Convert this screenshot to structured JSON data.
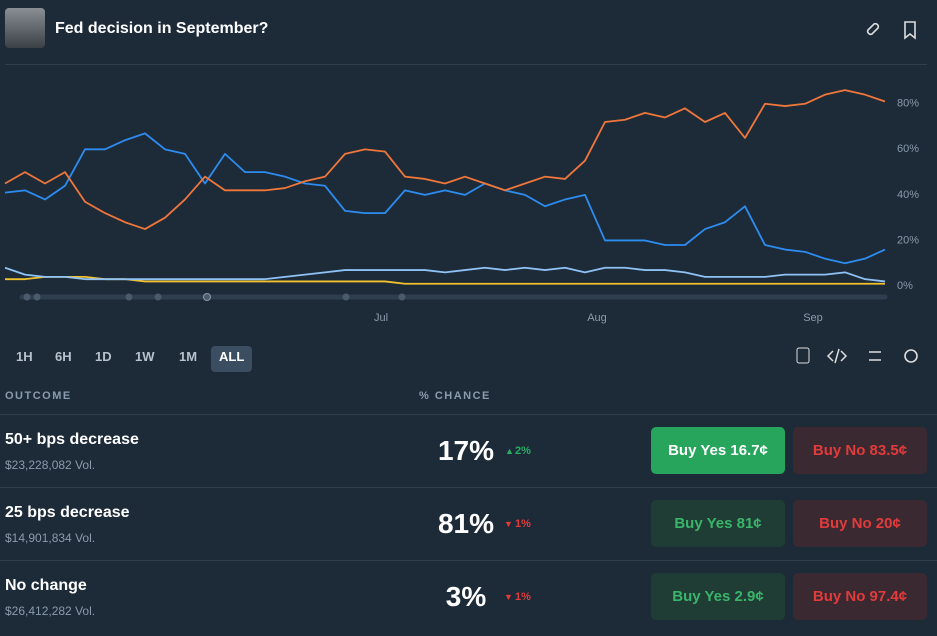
{
  "header": {
    "title": "Fed decision in September?"
  },
  "chart_data": {
    "type": "line",
    "ylim": [
      0,
      90
    ],
    "yticks": [
      {
        "value": 0,
        "label": "0%"
      },
      {
        "value": 20,
        "label": "20%"
      },
      {
        "value": 40,
        "label": "40%"
      },
      {
        "value": 60,
        "label": "60%"
      },
      {
        "value": 80,
        "label": "80%"
      }
    ],
    "xlim": [
      0,
      44
    ],
    "xticks": [
      {
        "value": 18.8,
        "label": "Jul"
      },
      {
        "value": 29.6,
        "label": "Aug"
      },
      {
        "value": 40.4,
        "label": "Sep"
      }
    ],
    "series": [
      {
        "color": "#f0763a",
        "values": [
          45,
          50,
          45,
          50,
          37,
          32,
          28,
          25,
          30,
          38,
          48,
          42,
          42,
          42,
          43,
          46,
          48,
          58,
          60,
          59,
          48,
          47,
          45,
          48,
          45,
          42,
          45,
          48,
          47,
          55,
          72,
          73,
          76,
          74,
          78,
          72,
          76,
          65,
          80,
          79,
          80,
          84,
          86,
          84,
          81
        ]
      },
      {
        "color": "#2d8cf0",
        "values": [
          41,
          42,
          38,
          44,
          60,
          60,
          64,
          67,
          60,
          58,
          45,
          58,
          50,
          50,
          48,
          45,
          44,
          33,
          32,
          32,
          42,
          40,
          42,
          40,
          45,
          42,
          40,
          35,
          38,
          40,
          20,
          20,
          20,
          18,
          18,
          25,
          28,
          35,
          18,
          16,
          15,
          12,
          10,
          12,
          16
        ]
      },
      {
        "color": "#8fc2f5",
        "values": [
          8,
          5,
          4,
          4,
          3,
          3,
          3,
          3,
          3,
          3,
          3,
          3,
          3,
          3,
          4,
          5,
          6,
          7,
          7,
          7,
          7,
          7,
          6,
          7,
          8,
          7,
          8,
          7,
          8,
          6,
          8,
          8,
          7,
          7,
          6,
          4,
          4,
          4,
          4,
          5,
          5,
          5,
          6,
          3,
          2
        ]
      },
      {
        "color": "#f2c12e",
        "values": [
          3,
          3,
          4,
          4,
          4,
          3,
          3,
          2,
          2,
          2,
          2,
          2,
          2,
          2,
          2,
          2,
          2,
          2,
          2,
          2,
          1,
          1,
          1,
          1,
          1,
          1,
          1,
          1,
          1,
          1,
          1,
          1,
          1,
          1,
          1,
          1,
          1,
          1,
          1,
          1,
          1,
          1,
          1,
          1,
          1
        ]
      }
    ]
  },
  "ranges": [
    "1H",
    "6H",
    "1D",
    "1W",
    "1M",
    "ALL"
  ],
  "table": {
    "headers": [
      "OUTCOME",
      "% CHANCE"
    ],
    "rows": [
      {
        "name": "50+ bps decrease",
        "volume": "$23,228,082 Vol.",
        "chance": "17%",
        "change": "2%",
        "yes": "Buy Yes 16.7¢",
        "no": "Buy No 83.5¢"
      },
      {
        "name": "25 bps decrease",
        "volume": "$14,901,834 Vol.",
        "chance": "81%",
        "change": "1%",
        "yes": "Buy Yes 81¢",
        "no": "Buy No 20¢"
      },
      {
        "name": "No change",
        "volume": "$26,412,282 Vol.",
        "chance": "3%",
        "change": "1%",
        "yes": "Buy Yes 2.9¢",
        "no": "Buy No 97.4¢"
      }
    ]
  }
}
